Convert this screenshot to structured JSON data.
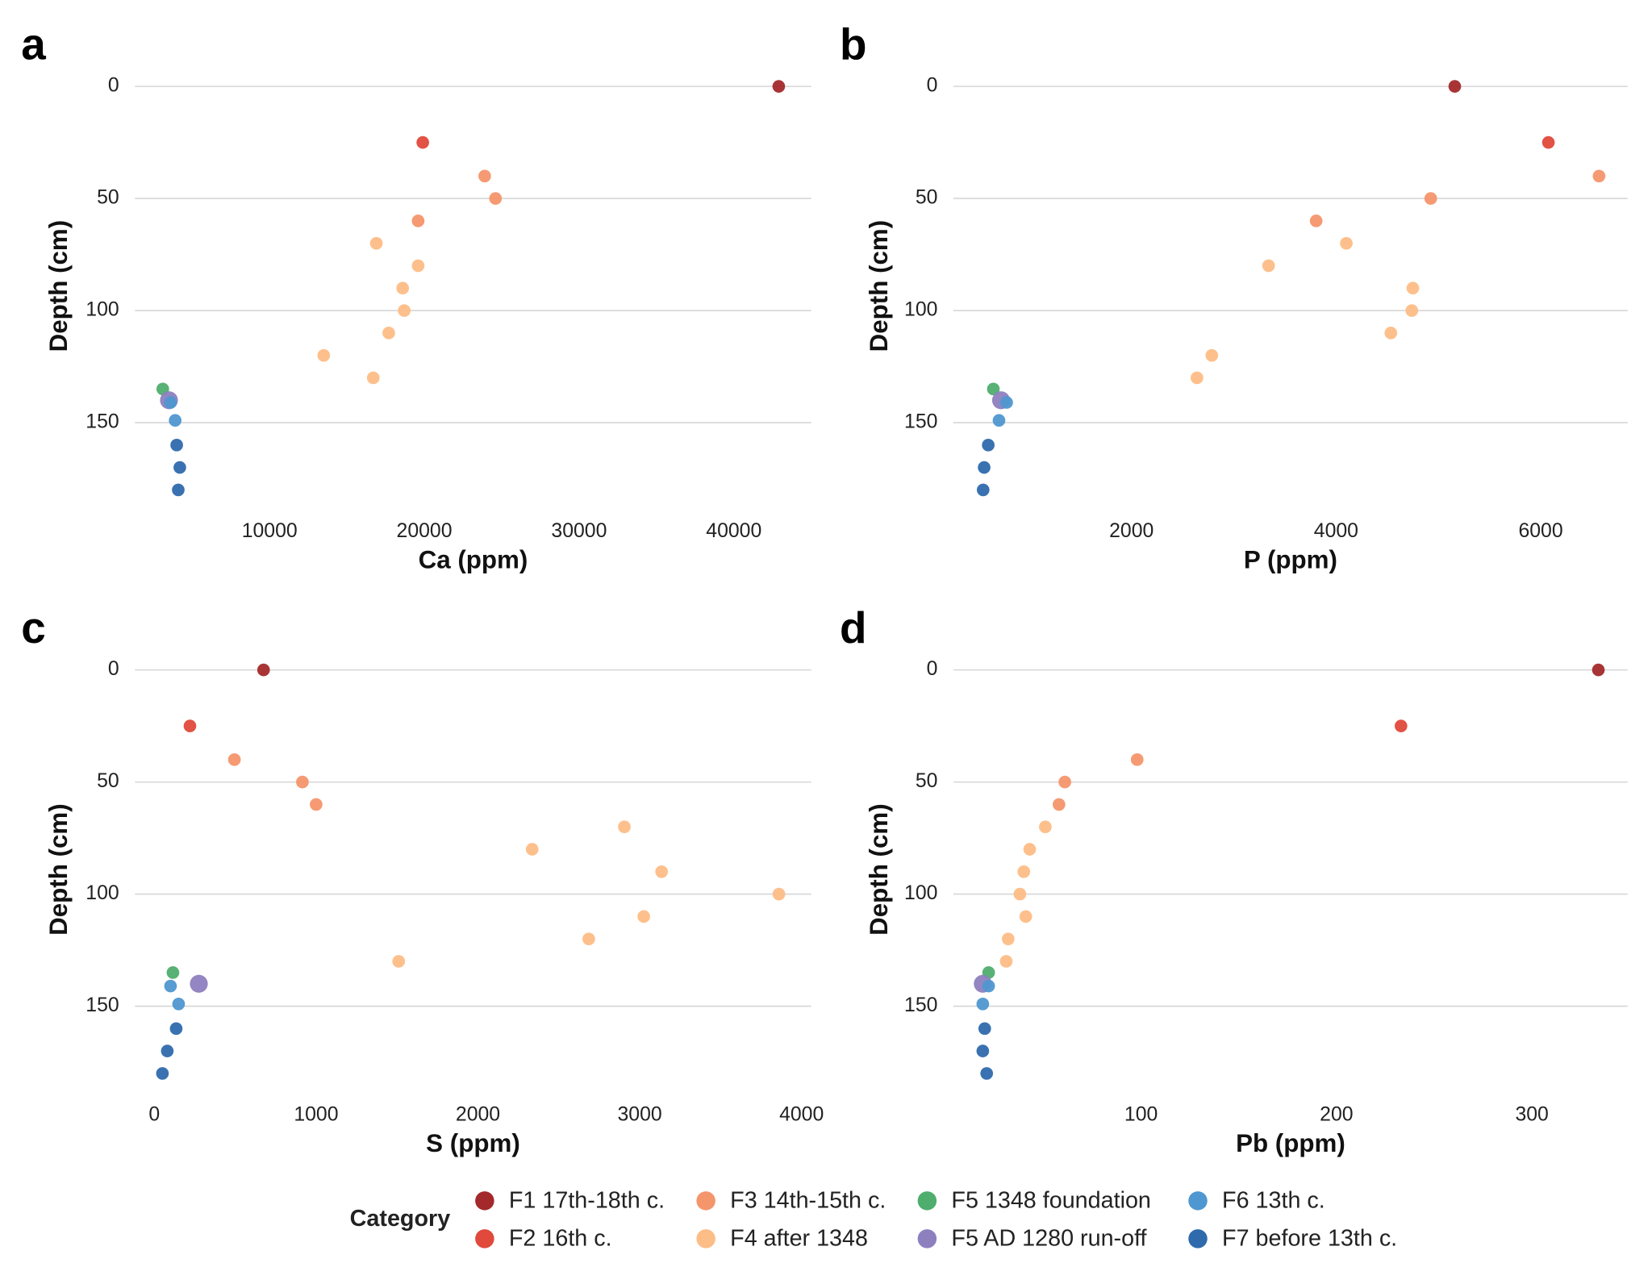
{
  "legend": {
    "title": "Category"
  },
  "chart_data": [
    {
      "type": "scatter",
      "panel_label": "a",
      "x_label": "Ca (ppm)",
      "y_label": "Depth (cm)",
      "xlim": [
        1300,
        45000
      ],
      "xticks": [
        10000,
        20000,
        30000,
        40000
      ],
      "ylim": [
        -8,
        187
      ],
      "y_inverted": true,
      "yticks": [
        0,
        50,
        100,
        150
      ],
      "grid": "y",
      "series": [
        {
          "name": "F1 17th-18th c.",
          "color": "#a3292b",
          "x": [
            42900
          ],
          "y": [
            0
          ]
        },
        {
          "name": "F2 16th c.",
          "color": "#e0493b",
          "x": [
            19900
          ],
          "y": [
            25
          ]
        },
        {
          "name": "F3 14th-15th c.",
          "color": "#f4956b",
          "x": [
            23900,
            24600,
            19600
          ],
          "y": [
            40,
            50,
            60
          ]
        },
        {
          "name": "F4 after 1348",
          "color": "#fdbd86",
          "x": [
            16900,
            19600,
            18600,
            18700,
            17700,
            13500,
            16700
          ],
          "y": [
            70,
            80,
            90,
            100,
            110,
            120,
            130
          ]
        },
        {
          "name": "F5 1348 foundation",
          "color": "#4fad6e",
          "x": [
            3100
          ],
          "y": [
            135
          ]
        },
        {
          "name": "F5 AD 1280 run-off",
          "color": "#8d80bf",
          "x": [
            3500
          ],
          "y": [
            140
          ]
        },
        {
          "name": "F6 13th c.",
          "color": "#4f97d0",
          "x": [
            3600,
            3900
          ],
          "y": [
            141,
            149
          ]
        },
        {
          "name": "F7 before 13th c.",
          "color": "#2f6aad",
          "x": [
            4000,
            4200,
            4100
          ],
          "y": [
            160,
            170,
            180
          ]
        }
      ]
    },
    {
      "type": "scatter",
      "panel_label": "b",
      "x_label": "P (ppm)",
      "y_label": "Depth (cm)",
      "xlim": [
        260,
        6850
      ],
      "xticks": [
        2000,
        4000,
        6000
      ],
      "ylim": [
        -8,
        187
      ],
      "y_inverted": true,
      "yticks": [
        0,
        50,
        100,
        150
      ],
      "grid": "y",
      "series": [
        {
          "name": "F1 17th-18th c.",
          "color": "#a3292b",
          "x": [
            5160
          ],
          "y": [
            0
          ]
        },
        {
          "name": "F2 16th c.",
          "color": "#e0493b",
          "x": [
            6075
          ],
          "y": [
            25
          ]
        },
        {
          "name": "F3 14th-15th c.",
          "color": "#f4956b",
          "x": [
            6570,
            4925,
            3805
          ],
          "y": [
            40,
            50,
            60
          ]
        },
        {
          "name": "F4 after 1348",
          "color": "#fdbd86",
          "x": [
            4100,
            3340,
            4750,
            4740,
            4535,
            2785,
            2640
          ],
          "y": [
            70,
            80,
            90,
            100,
            110,
            120,
            130
          ]
        },
        {
          "name": "F5 1348 foundation",
          "color": "#4fad6e",
          "x": [
            650
          ],
          "y": [
            135
          ]
        },
        {
          "name": "F5 AD 1280 run-off",
          "color": "#8d80bf",
          "x": [
            725
          ],
          "y": [
            140
          ]
        },
        {
          "name": "F6 13th c.",
          "color": "#4f97d0",
          "x": [
            780,
            705
          ],
          "y": [
            141,
            149
          ]
        },
        {
          "name": "F7 before 13th c.",
          "color": "#2f6aad",
          "x": [
            600,
            560,
            550
          ],
          "y": [
            160,
            170,
            180
          ]
        }
      ]
    },
    {
      "type": "scatter",
      "panel_label": "c",
      "x_label": "S (ppm)",
      "y_label": "Depth (cm)",
      "xlim": [
        -120,
        4060
      ],
      "xticks": [
        0,
        1000,
        2000,
        3000,
        4000
      ],
      "ylim": [
        -8,
        187
      ],
      "y_inverted": true,
      "yticks": [
        0,
        50,
        100,
        150
      ],
      "grid": "y",
      "series": [
        {
          "name": "F1 17th-18th c.",
          "color": "#a3292b",
          "x": [
            675
          ],
          "y": [
            0
          ]
        },
        {
          "name": "F2 16th c.",
          "color": "#e0493b",
          "x": [
            220
          ],
          "y": [
            25
          ]
        },
        {
          "name": "F3 14th-15th c.",
          "color": "#f4956b",
          "x": [
            495,
            915,
            1000
          ],
          "y": [
            40,
            50,
            60
          ]
        },
        {
          "name": "F4 after 1348",
          "color": "#fdbd86",
          "x": [
            2905,
            2335,
            3135,
            3860,
            3025,
            2685,
            1510
          ],
          "y": [
            70,
            80,
            90,
            100,
            110,
            120,
            130
          ]
        },
        {
          "name": "F5 1348 foundation",
          "color": "#4fad6e",
          "x": [
            115
          ],
          "y": [
            135
          ]
        },
        {
          "name": "F5 AD 1280 run-off",
          "color": "#8d80bf",
          "x": [
            275
          ],
          "y": [
            140
          ]
        },
        {
          "name": "F6 13th c.",
          "color": "#4f97d0",
          "x": [
            100,
            150
          ],
          "y": [
            141,
            149
          ]
        },
        {
          "name": "F7 before 13th c.",
          "color": "#2f6aad",
          "x": [
            135,
            80,
            50
          ],
          "y": [
            160,
            170,
            180
          ]
        }
      ]
    },
    {
      "type": "scatter",
      "panel_label": "d",
      "x_label": "Pb (ppm)",
      "y_label": "Depth (cm)",
      "xlim": [
        4,
        349
      ],
      "xticks": [
        100,
        200,
        300
      ],
      "ylim": [
        -8,
        187
      ],
      "y_inverted": true,
      "yticks": [
        0,
        50,
        100,
        150
      ],
      "grid": "y",
      "series": [
        {
          "name": "F1 17th-18th c.",
          "color": "#a3292b",
          "x": [
            334
          ],
          "y": [
            0
          ]
        },
        {
          "name": "F2 16th c.",
          "color": "#e0493b",
          "x": [
            233
          ],
          "y": [
            25
          ]
        },
        {
          "name": "F3 14th-15th c.",
          "color": "#f4956b",
          "x": [
            98,
            61,
            58
          ],
          "y": [
            40,
            50,
            60
          ]
        },
        {
          "name": "F4 after 1348",
          "color": "#fdbd86",
          "x": [
            51,
            43,
            40,
            38,
            41,
            32,
            31
          ],
          "y": [
            70,
            80,
            90,
            100,
            110,
            120,
            130
          ]
        },
        {
          "name": "F5 1348 foundation",
          "color": "#4fad6e",
          "x": [
            22
          ],
          "y": [
            135
          ]
        },
        {
          "name": "F5 AD 1280 run-off",
          "color": "#8d80bf",
          "x": [
            19
          ],
          "y": [
            140
          ]
        },
        {
          "name": "F6 13th c.",
          "color": "#4f97d0",
          "x": [
            22,
            19
          ],
          "y": [
            141,
            149
          ]
        },
        {
          "name": "F7 before 13th c.",
          "color": "#2f6aad",
          "x": [
            20,
            19,
            21
          ],
          "y": [
            160,
            170,
            180
          ]
        }
      ]
    }
  ]
}
